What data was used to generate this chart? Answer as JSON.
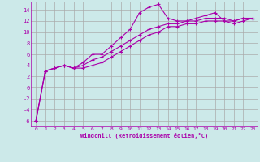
{
  "xlabel": "Windchill (Refroidissement éolien,°C)",
  "background_color": "#cce9e9",
  "grid_color": "#aaaaaa",
  "line_color": "#aa00aa",
  "x_ticks": [
    0,
    1,
    2,
    3,
    4,
    5,
    6,
    7,
    8,
    9,
    10,
    11,
    12,
    13,
    14,
    15,
    16,
    17,
    18,
    19,
    20,
    21,
    22,
    23
  ],
  "y_ticks": [
    -6,
    -4,
    -2,
    0,
    2,
    4,
    6,
    8,
    10,
    12,
    14
  ],
  "xlim": [
    -0.5,
    23.5
  ],
  "ylim": [
    -7,
    15.5
  ],
  "line1_x": [
    0,
    1,
    2,
    3,
    4,
    5,
    6,
    7,
    8,
    9,
    10,
    11,
    12,
    13,
    14,
    15,
    16,
    17,
    18,
    19,
    20,
    21,
    22,
    23
  ],
  "line1_y": [
    -6.0,
    3.0,
    3.5,
    4.0,
    3.5,
    4.5,
    6.0,
    6.0,
    7.5,
    9.0,
    10.5,
    13.5,
    14.5,
    15.0,
    12.5,
    12.0,
    12.0,
    12.5,
    13.0,
    13.5,
    12.0,
    12.0,
    12.5,
    12.5
  ],
  "line2_x": [
    0,
    1,
    2,
    3,
    4,
    5,
    6,
    7,
    8,
    9,
    10,
    11,
    12,
    13,
    14,
    15,
    16,
    17,
    18,
    19,
    20,
    21,
    22,
    23
  ],
  "line2_y": [
    -6.0,
    3.0,
    3.5,
    4.0,
    3.5,
    4.0,
    5.0,
    5.5,
    6.5,
    7.5,
    8.5,
    9.5,
    10.5,
    11.0,
    11.5,
    11.5,
    12.0,
    12.0,
    12.5,
    12.5,
    12.5,
    12.0,
    12.5,
    12.5
  ],
  "line3_x": [
    0,
    1,
    2,
    3,
    4,
    5,
    6,
    7,
    8,
    9,
    10,
    11,
    12,
    13,
    14,
    15,
    16,
    17,
    18,
    19,
    20,
    21,
    22,
    23
  ],
  "line3_y": [
    -6.0,
    3.0,
    3.5,
    4.0,
    3.5,
    3.5,
    4.0,
    4.5,
    5.5,
    6.5,
    7.5,
    8.5,
    9.5,
    10.0,
    11.0,
    11.0,
    11.5,
    11.5,
    12.0,
    12.0,
    12.0,
    11.5,
    12.0,
    12.5
  ]
}
